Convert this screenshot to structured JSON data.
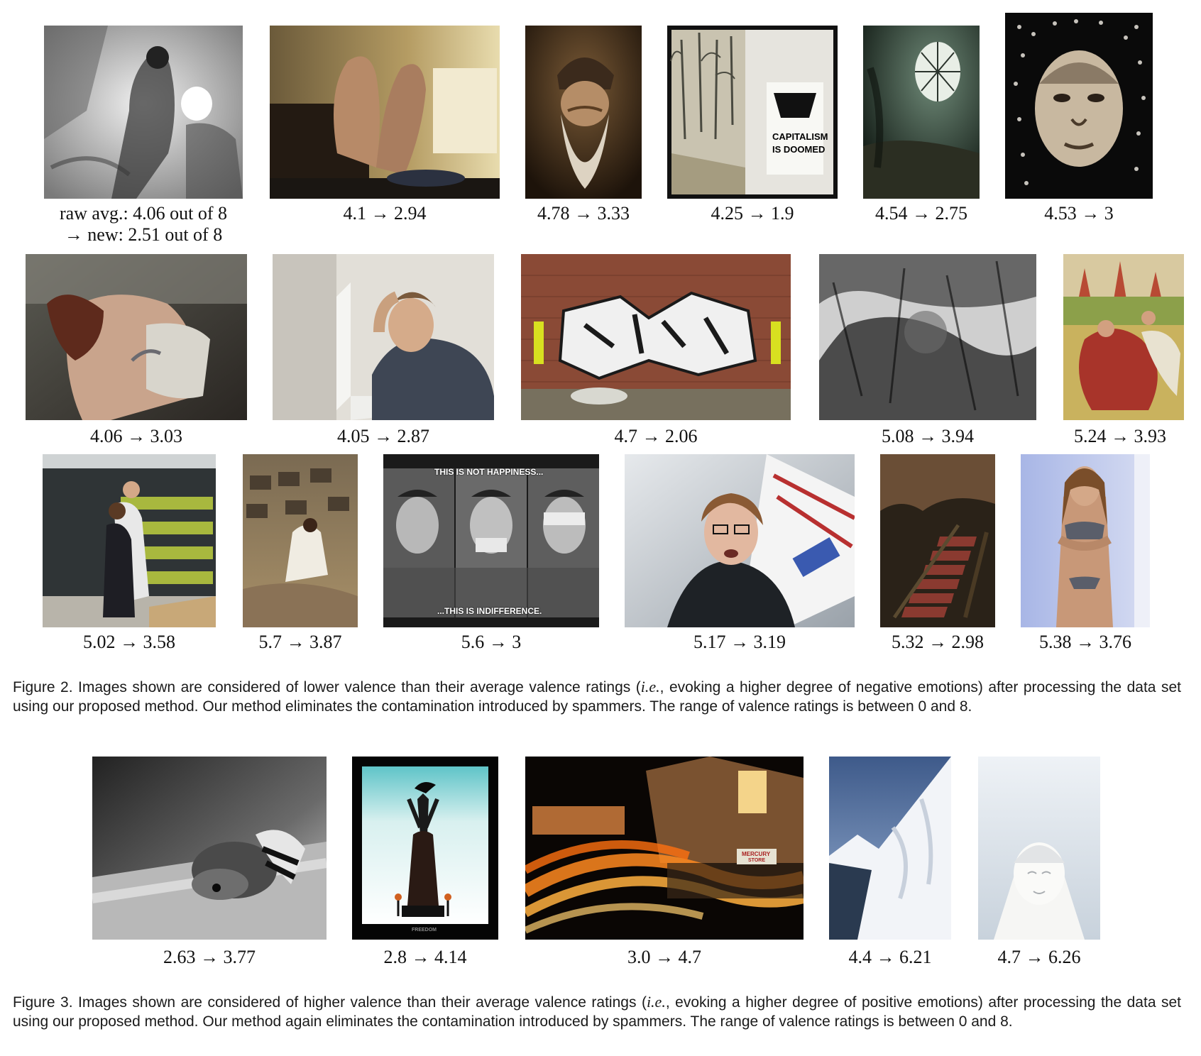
{
  "figure2": {
    "row1": [
      {
        "name": "charcoal-sketch",
        "caption_line1": "raw avg.: 4.06 out of 8",
        "caption_line2": "→ new: 2.51 out of 8"
      },
      {
        "name": "bare-feet-on-desk",
        "caption": "4.1 → 2.94"
      },
      {
        "name": "bearded-old-man",
        "caption": "4.78 → 3.33"
      },
      {
        "name": "street-poster",
        "caption": "4.25 → 1.9",
        "poster_line1": "CAPITALISM",
        "poster_line2": "IS DOOMED"
      },
      {
        "name": "abandoned-room",
        "caption": "4.54 → 2.75"
      },
      {
        "name": "dotted-portrait",
        "caption": "4.53 → 3"
      }
    ],
    "row2": [
      {
        "name": "woman-bent-over",
        "caption": "4.06 → 3.03"
      },
      {
        "name": "stressed-man-laptop",
        "caption": "4.05 → 2.87"
      },
      {
        "name": "graffiti-wall",
        "caption": "4.7 → 2.06"
      },
      {
        "name": "grunge-texture",
        "caption": "5.08 → 3.94"
      },
      {
        "name": "medieval-painting",
        "caption": "5.24 → 3.93"
      }
    ],
    "row3": [
      {
        "name": "office-hug",
        "caption": "5.02 → 3.58"
      },
      {
        "name": "ruined-hall-woman",
        "caption": "5.7 → 3.87"
      },
      {
        "name": "three-faces",
        "caption": "5.6 → 3",
        "top_text": "THIS IS NOT HAPPINESS...",
        "bottom_text": "...THIS IS INDIFFERENCE."
      },
      {
        "name": "crying-woman",
        "caption": "5.17 → 3.19"
      },
      {
        "name": "decayed-staircase",
        "caption": "5.32 → 2.98"
      },
      {
        "name": "woman-bikini",
        "caption": "5.38 → 3.76"
      }
    ],
    "caption_label": "Figure 2.",
    "caption_part1": " Images shown are considered of lower valence than their average valence ratings (",
    "caption_italic": "i.e.",
    "caption_part2": ", evoking a higher degree of negative emotions) after processing the data set using our proposed method. Our method eliminates the contamination introduced by spammers. The range of valence ratings is between 0 and 8."
  },
  "figure3": {
    "row": [
      {
        "name": "sleeping-dog",
        "caption": "2.63 → 3.77"
      },
      {
        "name": "dove-silhouette",
        "caption": "2.8 → 4.14",
        "small_text": "FREEDOM"
      },
      {
        "name": "candle-procession",
        "caption": "3.0 → 4.7",
        "sign_line1": "MERCURY",
        "sign_line2": "STORE"
      },
      {
        "name": "snowy-mountain",
        "caption": "4.4 → 6.21"
      },
      {
        "name": "buddha-statue",
        "caption": "4.7 → 6.26"
      }
    ],
    "caption_label": "Figure 3.",
    "caption_part1": " Images shown are considered of higher valence than their average valence ratings (",
    "caption_italic": "i.e.",
    "caption_part2": ", evoking a higher degree of positive emotions) after processing the data set using our proposed method. Our method again eliminates the contamination introduced by spammers. The range of valence ratings is between 0 and 8."
  }
}
